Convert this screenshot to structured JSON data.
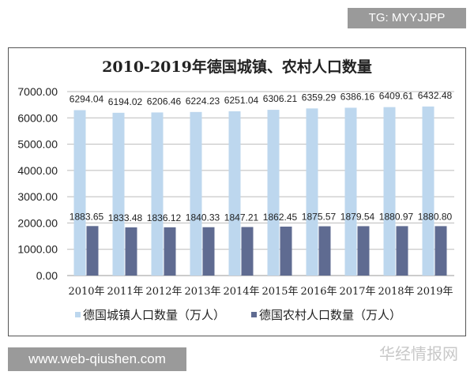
{
  "tag_label": "TG: MYYJJPP",
  "site_label": "www.web-qiushen.com",
  "watermark": "华经情报网",
  "chart_data": {
    "type": "bar",
    "title": "2010-2019年德国城镇、农村人口数量",
    "categories": [
      "2010年",
      "2011年",
      "2012年",
      "2013年",
      "2014年",
      "2015年",
      "2016年",
      "2017年",
      "2018年",
      "2019年"
    ],
    "series": [
      {
        "name": "德国城镇人口数量（万人）",
        "color": "#bdd7ee",
        "values": [
          6294.04,
          6194.02,
          6206.46,
          6224.23,
          6251.04,
          6306.21,
          6359.29,
          6386.16,
          6409.61,
          6432.48
        ],
        "labels": [
          "6294.04",
          "6194.02",
          "6206.46",
          "6224.23",
          "6251.04",
          "6306.21",
          "6359.29",
          "6386.16",
          "6409.61",
          "6432.48"
        ]
      },
      {
        "name": "德国农村人口数量（万人）",
        "color": "#5f6b91",
        "values": [
          1883.65,
          1833.48,
          1836.12,
          1840.33,
          1847.21,
          1862.45,
          1875.57,
          1879.54,
          1880.97,
          1880.8
        ],
        "labels": [
          "1883.65",
          "1833.48",
          "1836.12",
          "1840.33",
          "1847.21",
          "1862.45",
          "1875.57",
          "1879.54",
          "1880.97",
          "1880.80"
        ]
      }
    ],
    "yticks": [
      "0.00",
      "1000.00",
      "2000.00",
      "3000.00",
      "4000.00",
      "5000.00",
      "6000.00",
      "7000.00"
    ],
    "ylim": [
      0,
      7000
    ],
    "grid": true,
    "legend": "bottom"
  }
}
